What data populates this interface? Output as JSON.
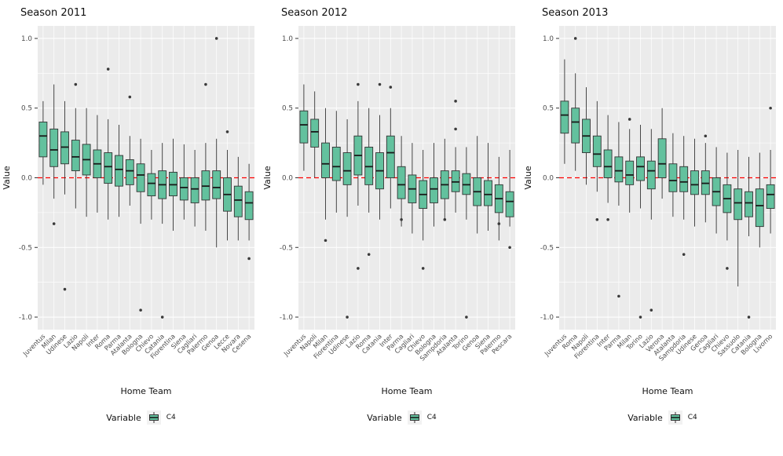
{
  "figure": {
    "ylabel": "Value",
    "xlabel": "Home Team",
    "legend_title": "Variable",
    "legend_item": "C4",
    "y_ticks": [
      1.0,
      0.5,
      0.0,
      -0.5,
      -1.0
    ],
    "ylim": [
      -1.09,
      1.09
    ],
    "colors": {
      "box_fill": "#63C19E",
      "box_stroke": "#333333",
      "panel_bg": "#EBEBEB",
      "grid": "#FFFFFF",
      "zero_line": "#FF0000",
      "outlier": "#3a3a3a",
      "legend_key_bg": "#F2F2F2"
    }
  },
  "chart_data": [
    {
      "type": "boxplot",
      "title": "Season 2011",
      "stats_order": [
        "whisker_low",
        "q1",
        "median",
        "q3",
        "whisker_high"
      ],
      "categories": [
        "Juventus",
        "Milan",
        "Udinese",
        "Lazio",
        "Napoli",
        "Inter",
        "Roma",
        "Parma",
        "Atalanta",
        "Bologna",
        "Chievo",
        "Catania",
        "Fiorentina",
        "Siena",
        "Cagliari",
        "Palermo",
        "Genoa",
        "Lecce",
        "Novara",
        "Cesena"
      ],
      "stats": [
        [
          -0.05,
          0.15,
          0.3,
          0.4,
          0.55
        ],
        [
          -0.15,
          0.08,
          0.2,
          0.35,
          0.67
        ],
        [
          -0.12,
          0.1,
          0.22,
          0.33,
          0.55
        ],
        [
          -0.22,
          0.05,
          0.15,
          0.27,
          0.5
        ],
        [
          -0.28,
          0.02,
          0.13,
          0.24,
          0.5
        ],
        [
          -0.25,
          0.0,
          0.1,
          0.2,
          0.45
        ],
        [
          -0.3,
          -0.04,
          0.08,
          0.18,
          0.42
        ],
        [
          -0.28,
          -0.06,
          0.06,
          0.16,
          0.38
        ],
        [
          -0.2,
          -0.05,
          0.05,
          0.13,
          0.3
        ],
        [
          -0.33,
          -0.1,
          0.02,
          0.1,
          0.28
        ],
        [
          -0.3,
          -0.13,
          -0.04,
          0.03,
          0.2
        ],
        [
          -0.33,
          -0.15,
          -0.05,
          0.05,
          0.25
        ],
        [
          -0.38,
          -0.13,
          -0.05,
          0.04,
          0.28
        ],
        [
          -0.3,
          -0.16,
          -0.07,
          0.0,
          0.24
        ],
        [
          -0.35,
          -0.18,
          -0.08,
          0.0,
          0.2
        ],
        [
          -0.38,
          -0.16,
          -0.06,
          0.05,
          0.25
        ],
        [
          -0.5,
          -0.15,
          -0.07,
          0.05,
          0.28
        ],
        [
          -0.45,
          -0.24,
          -0.12,
          0.0,
          0.2
        ],
        [
          -0.45,
          -0.28,
          -0.16,
          -0.06,
          0.15
        ],
        [
          -0.45,
          -0.3,
          -0.18,
          -0.1,
          0.1
        ]
      ],
      "outliers": [
        [],
        [
          -0.33
        ],
        [
          -0.8
        ],
        [
          0.67
        ],
        [],
        [],
        [
          0.78
        ],
        [],
        [
          0.58
        ],
        [
          -0.95
        ],
        [],
        [
          -1.0
        ],
        [],
        [],
        [],
        [
          0.67
        ],
        [
          1.0
        ],
        [
          0.33
        ],
        [],
        [
          -0.58
        ]
      ]
    },
    {
      "type": "boxplot",
      "title": "Season 2012",
      "stats_order": [
        "whisker_low",
        "q1",
        "median",
        "q3",
        "whisker_high"
      ],
      "categories": [
        "Juventus",
        "Napoli",
        "Milan",
        "Fiorentina",
        "Udinese",
        "Lazio",
        "Roma",
        "Catania",
        "Inter",
        "Parma",
        "Cagliari",
        "Chievo",
        "Bologna",
        "Sampdoria",
        "Atalanta",
        "Torino",
        "Genoa",
        "Siena",
        "Palermo",
        "Pescara"
      ],
      "stats": [
        [
          0.05,
          0.25,
          0.38,
          0.48,
          0.67
        ],
        [
          0.0,
          0.22,
          0.33,
          0.42,
          0.62
        ],
        [
          -0.3,
          0.0,
          0.1,
          0.25,
          0.5
        ],
        [
          -0.25,
          -0.02,
          0.08,
          0.22,
          0.48
        ],
        [
          -0.28,
          -0.05,
          0.05,
          0.18,
          0.42
        ],
        [
          -0.2,
          0.02,
          0.16,
          0.3,
          0.55
        ],
        [
          -0.25,
          -0.05,
          0.08,
          0.22,
          0.5
        ],
        [
          -0.3,
          -0.08,
          0.05,
          0.18,
          0.45
        ],
        [
          -0.22,
          0.0,
          0.18,
          0.3,
          0.5
        ],
        [
          -0.35,
          -0.15,
          -0.05,
          0.08,
          0.3
        ],
        [
          -0.4,
          -0.18,
          -0.08,
          0.02,
          0.25
        ],
        [
          -0.45,
          -0.22,
          -0.12,
          -0.02,
          0.2
        ],
        [
          -0.35,
          -0.18,
          -0.08,
          0.0,
          0.25
        ],
        [
          -0.3,
          -0.15,
          -0.05,
          0.05,
          0.28
        ],
        [
          -0.25,
          -0.1,
          -0.03,
          0.05,
          0.22
        ],
        [
          -0.3,
          -0.12,
          -0.05,
          0.03,
          0.22
        ],
        [
          -0.4,
          -0.2,
          -0.1,
          0.0,
          0.3
        ],
        [
          -0.38,
          -0.2,
          -0.12,
          -0.02,
          0.25
        ],
        [
          -0.45,
          -0.25,
          -0.15,
          -0.05,
          0.15
        ],
        [
          -0.35,
          -0.28,
          -0.17,
          -0.1,
          0.2
        ]
      ],
      "outliers": [
        [],
        [],
        [
          -0.45
        ],
        [],
        [
          -1.0
        ],
        [
          0.67,
          -0.65
        ],
        [
          -0.55
        ],
        [
          0.67
        ],
        [
          0.65
        ],
        [
          -0.3
        ],
        [],
        [
          -0.65
        ],
        [],
        [
          -0.3
        ],
        [
          0.55,
          0.35
        ],
        [
          -1.0
        ],
        [],
        [],
        [
          -0.33
        ],
        [
          -0.5
        ]
      ]
    },
    {
      "type": "boxplot",
      "title": "Season 2013",
      "stats_order": [
        "whisker_low",
        "q1",
        "median",
        "q3",
        "whisker_high"
      ],
      "categories": [
        "Juventus",
        "Roma",
        "Napoli",
        "Fiorentina",
        "Inter",
        "Parma",
        "Milan",
        "Torino",
        "Lazio",
        "Verona",
        "Atalanta",
        "Sampdoria",
        "Udinese",
        "Genoa",
        "Cagliari",
        "Chievo",
        "Sassuolo",
        "Catania",
        "Bologna",
        "Livorno"
      ],
      "stats": [
        [
          0.1,
          0.32,
          0.45,
          0.55,
          0.85
        ],
        [
          0.05,
          0.25,
          0.4,
          0.5,
          0.75
        ],
        [
          -0.05,
          0.18,
          0.3,
          0.42,
          0.65
        ],
        [
          -0.1,
          0.08,
          0.17,
          0.3,
          0.55
        ],
        [
          -0.18,
          0.0,
          0.08,
          0.2,
          0.45
        ],
        [
          -0.2,
          -0.03,
          0.05,
          0.15,
          0.4
        ],
        [
          -0.25,
          -0.05,
          0.02,
          0.12,
          0.35
        ],
        [
          -0.22,
          -0.02,
          0.08,
          0.15,
          0.38
        ],
        [
          -0.3,
          -0.08,
          0.05,
          0.12,
          0.35
        ],
        [
          -0.15,
          0.0,
          0.1,
          0.28,
          0.5
        ],
        [
          -0.28,
          -0.1,
          -0.02,
          0.1,
          0.32
        ],
        [
          -0.3,
          -0.1,
          -0.03,
          0.08,
          0.3
        ],
        [
          -0.35,
          -0.12,
          -0.05,
          0.05,
          0.28
        ],
        [
          -0.32,
          -0.12,
          -0.04,
          0.05,
          0.25
        ],
        [
          -0.4,
          -0.2,
          -0.1,
          0.0,
          0.22
        ],
        [
          -0.45,
          -0.25,
          -0.15,
          -0.05,
          0.18
        ],
        [
          -0.78,
          -0.3,
          -0.18,
          -0.08,
          0.2
        ],
        [
          -0.42,
          -0.28,
          -0.18,
          -0.1,
          0.15
        ],
        [
          -0.5,
          -0.35,
          -0.2,
          -0.08,
          0.18
        ],
        [
          -0.4,
          -0.22,
          -0.12,
          -0.05,
          0.2
        ]
      ],
      "outliers": [
        [],
        [
          1.0
        ],
        [],
        [
          -0.3
        ],
        [
          -0.3
        ],
        [
          -0.85
        ],
        [
          0.42
        ],
        [
          -1.0
        ],
        [
          -0.95
        ],
        [],
        [],
        [
          -0.55
        ],
        [],
        [
          0.3
        ],
        [],
        [
          -0.65
        ],
        [],
        [
          -1.0
        ],
        [],
        [
          0.5
        ]
      ]
    }
  ]
}
